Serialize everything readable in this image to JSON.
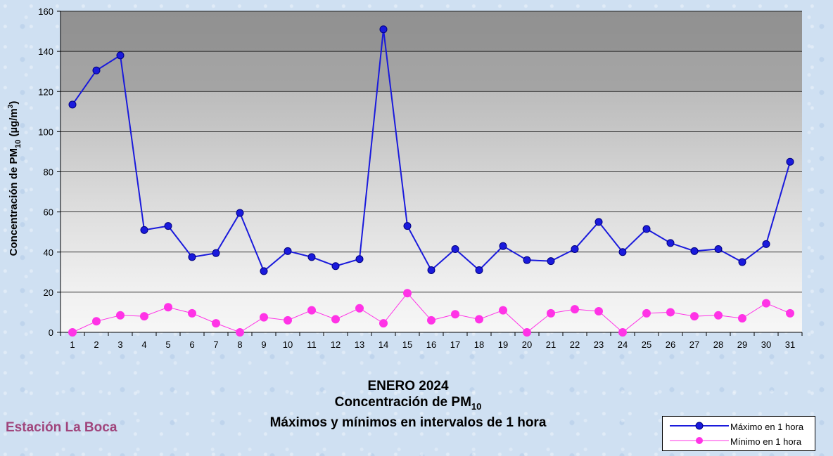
{
  "chart_data": {
    "type": "line",
    "categories": [
      "1",
      "2",
      "3",
      "4",
      "5",
      "6",
      "7",
      "8",
      "9",
      "10",
      "11",
      "12",
      "13",
      "14",
      "15",
      "16",
      "17",
      "18",
      "19",
      "20",
      "21",
      "22",
      "23",
      "24",
      "25",
      "26",
      "27",
      "28",
      "29",
      "30",
      "31"
    ],
    "series": [
      {
        "name": "Máximo en 1 hora",
        "color": "#1a1adc",
        "values": [
          113.5,
          130.5,
          138,
          51,
          53,
          37.5,
          39.5,
          59.5,
          30.5,
          40.5,
          37.5,
          33,
          36.5,
          151,
          53,
          31,
          41.5,
          31,
          43,
          36,
          35.5,
          41.5,
          55,
          40,
          51.5,
          44.5,
          40.5,
          41.5,
          35,
          44,
          85
        ]
      },
      {
        "name": "Mínimo en 1 hora",
        "color": "#ff33e6",
        "values": [
          0,
          5.5,
          8.5,
          8,
          12.5,
          9.5,
          4.5,
          0,
          7.5,
          6,
          11,
          6.5,
          12,
          4.5,
          19.5,
          6,
          9,
          6.5,
          11,
          0,
          9.5,
          11.5,
          10.5,
          0,
          9.5,
          10,
          8,
          8.5,
          7,
          14.5,
          9.5
        ]
      }
    ],
    "ylim": [
      0,
      160
    ],
    "yticks": [
      0,
      20,
      40,
      60,
      80,
      100,
      120,
      140,
      160
    ],
    "ylabel": {
      "main": "Concentración de PM",
      "sub": "10",
      "unit": " (µg/m",
      "sup": "3",
      "close": ")"
    },
    "grid": true,
    "shaded_bands": [
      {
        "from": 120,
        "to": 140,
        "color": "#9c9c9c"
      },
      {
        "from": 140,
        "to": 160,
        "color": "#8a8a8a"
      }
    ],
    "legend_position": "bottom-right",
    "title_lines": [
      {
        "text": "ENERO 2024"
      },
      {
        "text": "Concentración de PM",
        "sub": "10"
      },
      {
        "text": "Máximos y mínimos en intervalos de 1 hora"
      }
    ]
  },
  "station_label": "Estación La Boca",
  "legend": {
    "max_label": "Máximo en 1 hora",
    "min_label": "Mínimo en 1 hora"
  }
}
